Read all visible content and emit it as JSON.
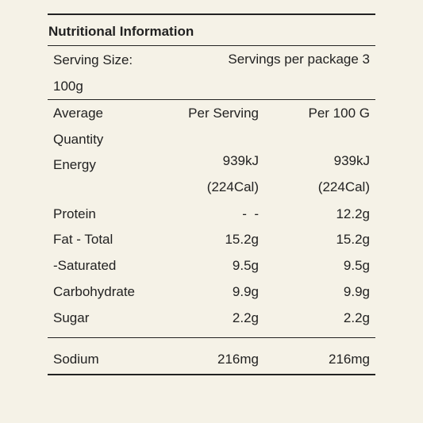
{
  "title": "Nutritional Information",
  "serving": {
    "size": "Serving Size: 100g",
    "per_package": "Servings per package 3"
  },
  "header": {
    "label": "Average Quantity",
    "per_serving": "Per Serving",
    "per_100g": "Per 100 G"
  },
  "rows": [
    {
      "label": "Energy",
      "per_serving": "939kJ (224Cal)",
      "per_100g": "939kJ (224Cal)"
    },
    {
      "label": "Protein",
      "per_serving": "-  -",
      "per_100g": "12.2g"
    },
    {
      "label": "Fat - Total",
      "per_serving": "15.2g",
      "per_100g": "15.2g"
    },
    {
      "label": "-Saturated",
      "per_serving": "9.5g",
      "per_100g": "9.5g"
    },
    {
      "label": "Carbohydrate",
      "per_serving": "9.9g",
      "per_100g": "9.9g"
    },
    {
      "label": "Sugar",
      "per_serving": "2.2g",
      "per_100g": "2.2g"
    },
    {
      "label": "Sodium",
      "per_serving": "216mg",
      "per_100g": "216mg"
    }
  ]
}
